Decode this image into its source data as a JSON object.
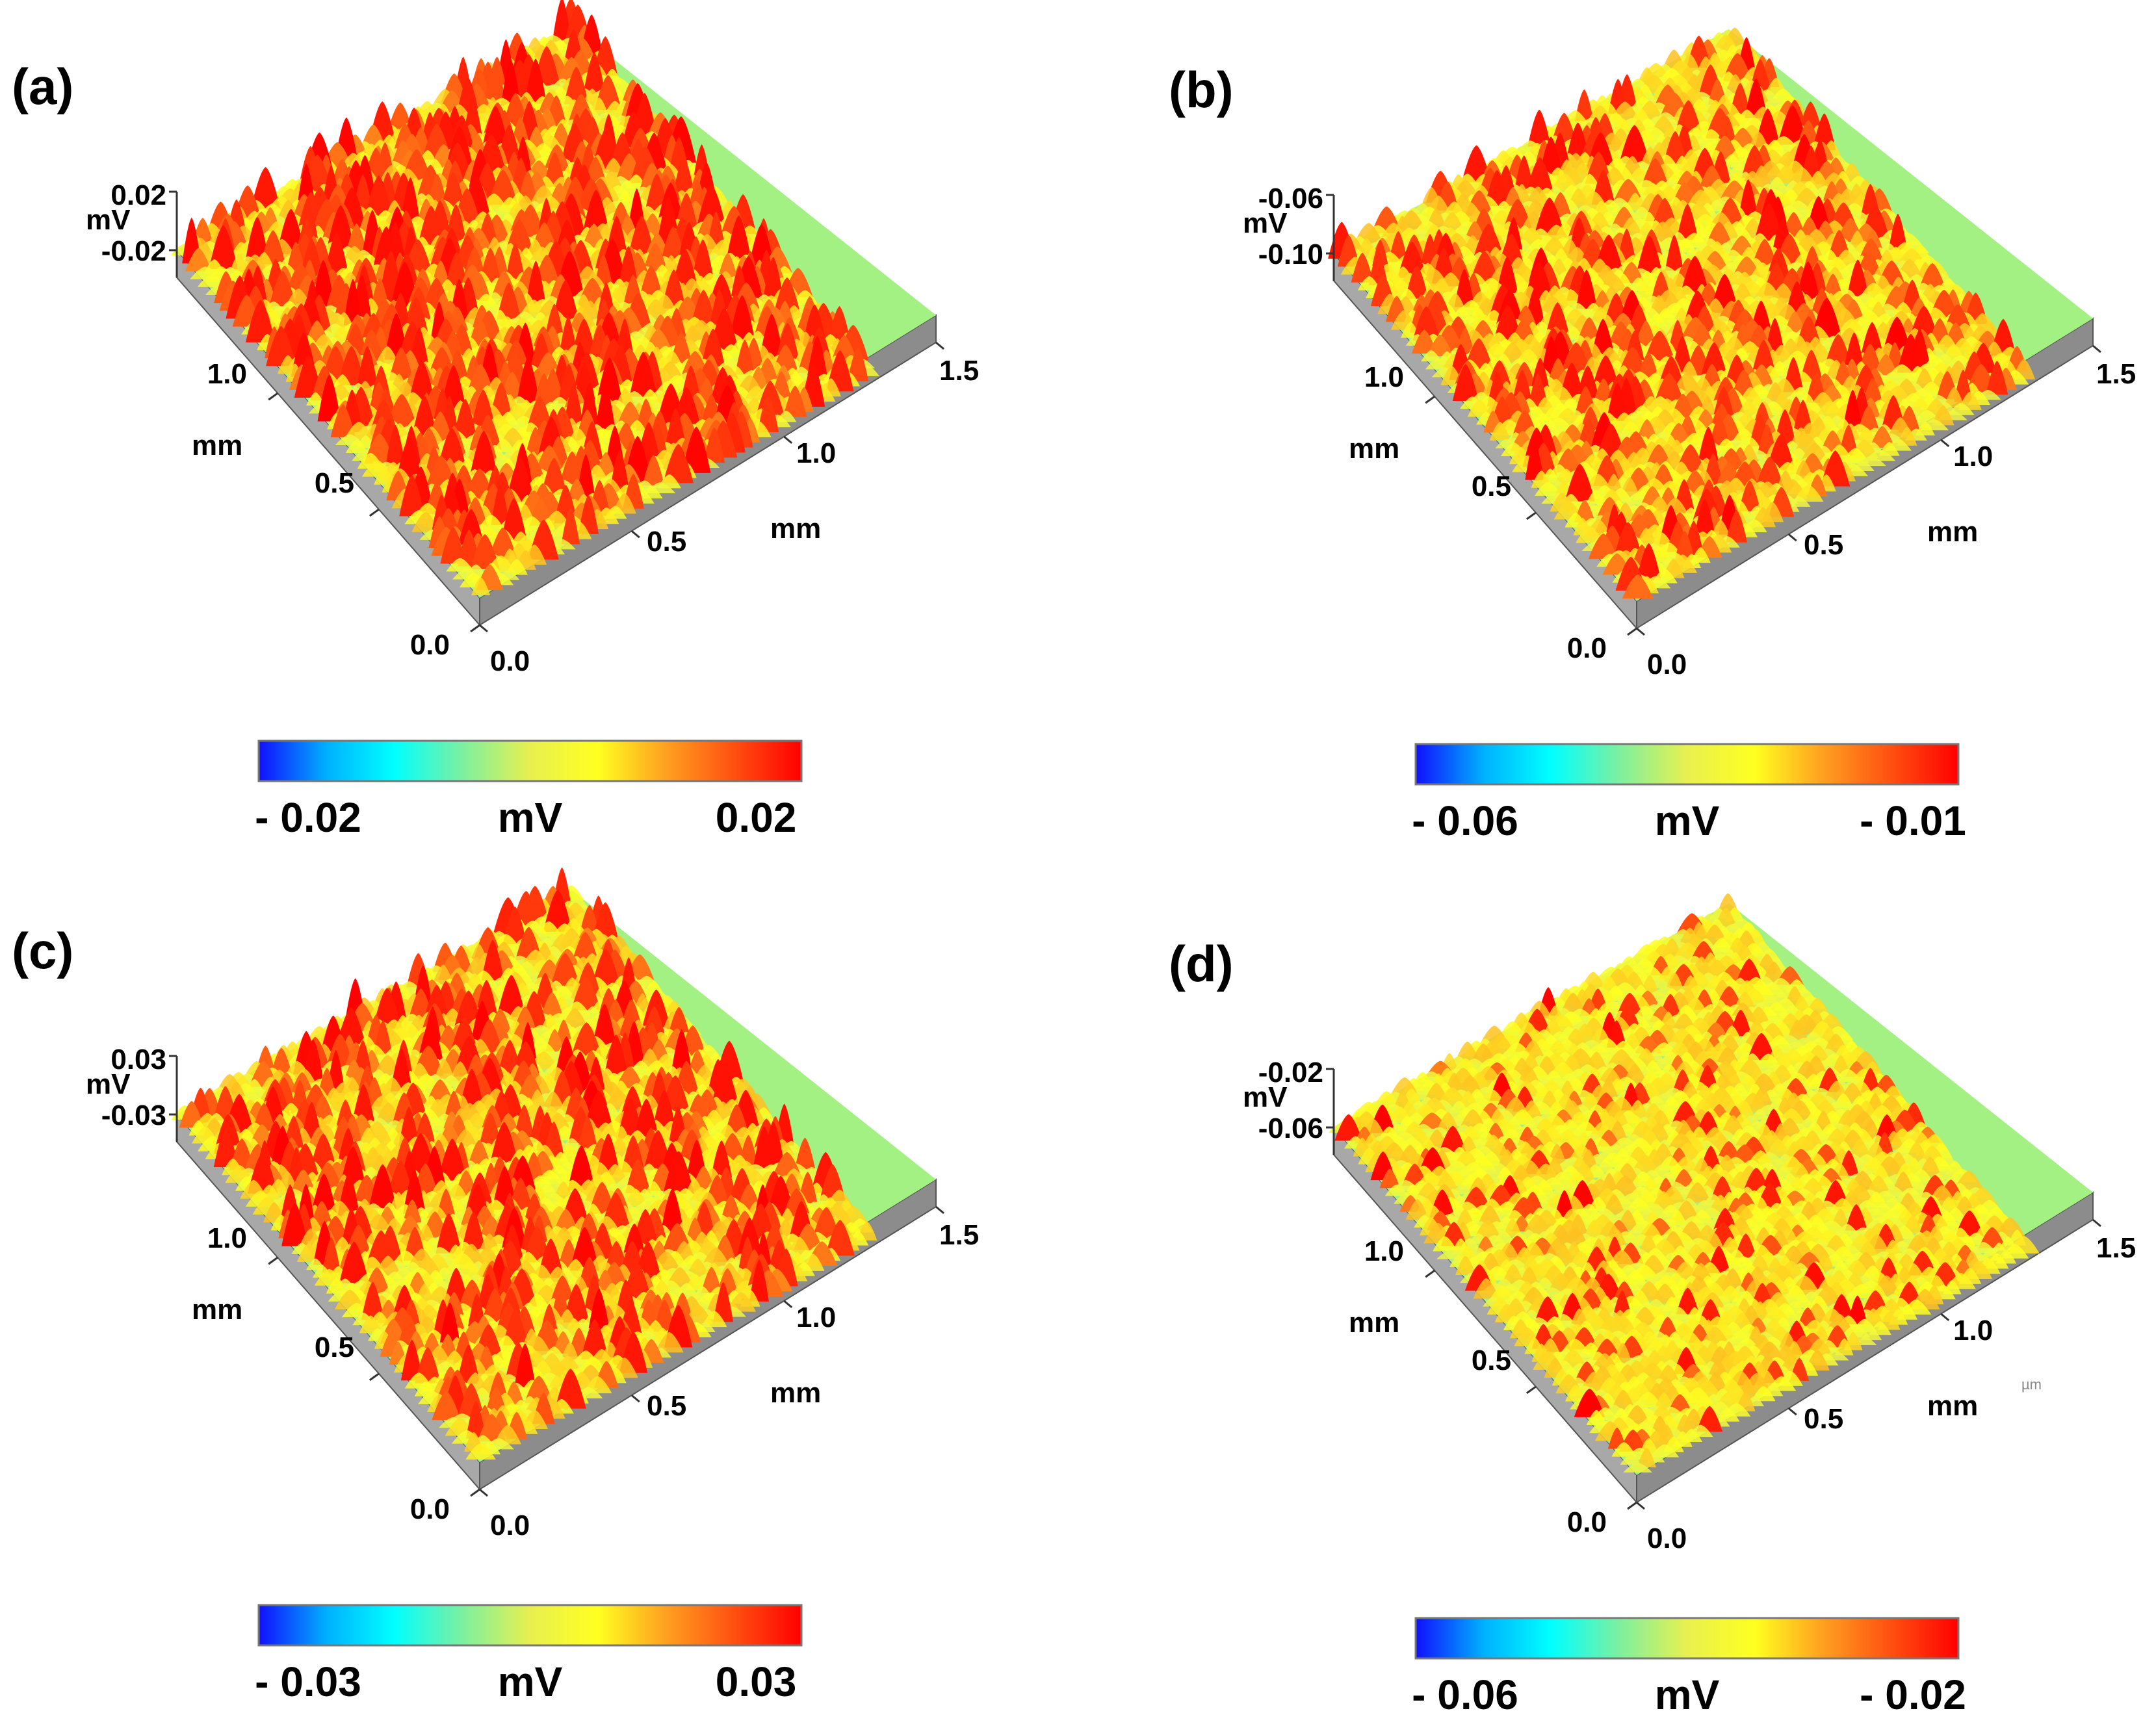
{
  "figure_description": "",
  "chart_data": [
    {
      "panel_label": "(a)",
      "type": "surface3d",
      "x_axis": {
        "label": "mm",
        "ticks": [
          "0.0",
          "0.5",
          "1.0",
          "1.5"
        ],
        "range": [
          0,
          1.5
        ]
      },
      "y_axis": {
        "label": "mm",
        "ticks": [
          "0.0",
          "0.5",
          "1.0"
        ],
        "range": [
          0,
          1.5
        ]
      },
      "z_axis": {
        "label": "mV",
        "ticks": [
          "0.02",
          "-0.02"
        ],
        "range": [
          -0.02,
          0.02
        ]
      },
      "colorbar": {
        "min_label": "- 0.02",
        "max_label": "0.02",
        "unit_label": "mV",
        "min": -0.02,
        "max": 0.02
      },
      "peak_density": 0.34,
      "peak_height": 0.95,
      "extra_text": ""
    },
    {
      "panel_label": "(b)",
      "type": "surface3d",
      "x_axis": {
        "label": "mm",
        "ticks": [
          "0.0",
          "0.5",
          "1.0",
          "1.5"
        ],
        "range": [
          0,
          1.5
        ]
      },
      "y_axis": {
        "label": "mm",
        "ticks": [
          "0.0",
          "0.5",
          "1.0"
        ],
        "range": [
          0,
          1.5
        ]
      },
      "z_axis": {
        "label": "mV",
        "ticks": [
          "-0.06",
          "-0.10"
        ],
        "range": [
          -0.1,
          -0.06
        ]
      },
      "colorbar": {
        "min_label": "- 0.06",
        "max_label": "- 0.01",
        "unit_label": "mV",
        "min": -0.06,
        "max": -0.01
      },
      "peak_density": 0.22,
      "peak_height": 0.8,
      "extra_text": ""
    },
    {
      "panel_label": "(c)",
      "type": "surface3d",
      "x_axis": {
        "label": "mm",
        "ticks": [
          "0.0",
          "0.5",
          "1.0",
          "1.5"
        ],
        "range": [
          0,
          1.5
        ]
      },
      "y_axis": {
        "label": "mm",
        "ticks": [
          "0.0",
          "0.5",
          "1.0"
        ],
        "range": [
          0,
          1.5
        ]
      },
      "z_axis": {
        "label": "mV",
        "ticks": [
          "0.03",
          "-0.03"
        ],
        "range": [
          -0.03,
          0.03
        ]
      },
      "colorbar": {
        "min_label": "- 0.03",
        "max_label": "0.03",
        "unit_label": "mV",
        "min": -0.03,
        "max": 0.03
      },
      "peak_density": 0.26,
      "peak_height": 0.9,
      "extra_text": ""
    },
    {
      "panel_label": "(d)",
      "type": "surface3d",
      "x_axis": {
        "label": "mm",
        "ticks": [
          "0.0",
          "0.5",
          "1.0",
          "1.5"
        ],
        "range": [
          0,
          1.5
        ]
      },
      "y_axis": {
        "label": "mm",
        "ticks": [
          "0.0",
          "0.5",
          "1.0"
        ],
        "range": [
          0,
          1.5
        ]
      },
      "z_axis": {
        "label": "mV",
        "ticks": [
          "-0.02",
          "-0.06"
        ],
        "range": [
          -0.06,
          -0.02
        ]
      },
      "colorbar": {
        "min_label": "- 0.06",
        "max_label": "- 0.02",
        "unit_label": "mV",
        "min": -0.06,
        "max": -0.02
      },
      "peak_density": 0.1,
      "peak_height": 0.55,
      "extra_text": "µm"
    }
  ],
  "colormap": [
    "#1010ff",
    "#00b0ff",
    "#00ffff",
    "#7cf0a0",
    "#e8f050",
    "#ffff20",
    "#ffa020",
    "#ff5010",
    "#ff0000"
  ]
}
